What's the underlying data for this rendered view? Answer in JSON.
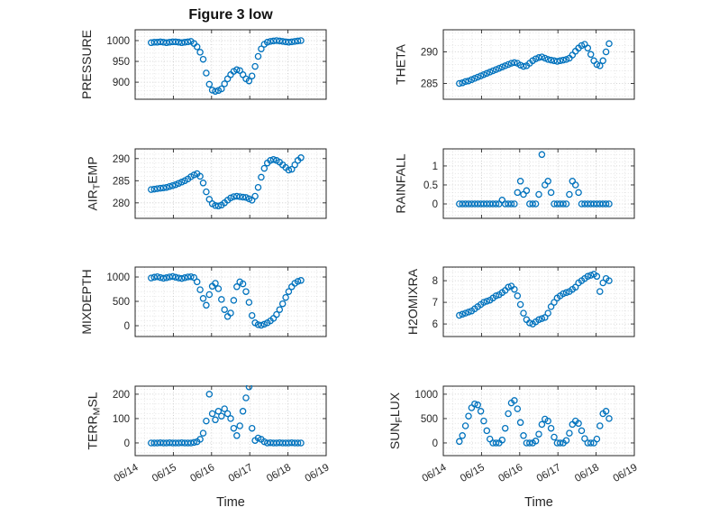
{
  "figure": {
    "title": "Figure 3 low",
    "xlabel": "Time"
  },
  "style": {
    "marker_color": "#0072BD",
    "marker": "open-circle",
    "axis_color": "#262626",
    "grid_color": "#c4c4c4",
    "minor_grid_color": "#dedede",
    "background": "#ffffff"
  },
  "chart_data": {
    "type": "scatter",
    "title": "Figure 3 low",
    "x_axis": {
      "xlabel": "Time",
      "xlim": [
        0,
        5
      ],
      "xticks": [
        0,
        1,
        2,
        3,
        4,
        5
      ],
      "xtick_labels": [
        "06/14",
        "06/15",
        "06/16",
        "06/17",
        "06/18",
        "06/19"
      ],
      "x_minor_step": 0.25
    },
    "x": [
      0.42,
      0.5,
      0.58,
      0.66,
      0.74,
      0.82,
      0.9,
      0.98,
      1.06,
      1.14,
      1.22,
      1.3,
      1.38,
      1.46,
      1.54,
      1.62,
      1.7,
      1.78,
      1.86,
      1.94,
      2.02,
      2.1,
      2.18,
      2.26,
      2.34,
      2.42,
      2.5,
      2.58,
      2.66,
      2.74,
      2.82,
      2.9,
      2.98,
      3.06,
      3.14,
      3.22,
      3.3,
      3.38,
      3.46,
      3.54,
      3.62,
      3.7,
      3.78,
      3.86,
      3.94,
      4.02,
      4.1,
      4.18,
      4.26,
      4.34
    ],
    "subplots": [
      {
        "id": "pressure",
        "row": 0,
        "col": 0,
        "ylabel": "PRESSURE",
        "ylabel_parts": [
          {
            "text": "PRESSURE"
          }
        ],
        "ylim": [
          859,
          1026
        ],
        "yticks": [
          900,
          950,
          1000
        ],
        "values": [
          995,
          996,
          996,
          997,
          996,
          995,
          996,
          997,
          997,
          996,
          995,
          996,
          997,
          998,
          993,
          985,
          972,
          955,
          922,
          895,
          881,
          878,
          880,
          884,
          896,
          908,
          918,
          926,
          930,
          928,
          918,
          908,
          903,
          915,
          938,
          962,
          980,
          991,
          996,
          998,
          999,
          1000,
          999,
          998,
          997,
          996,
          997,
          998,
          999,
          1000
        ]
      },
      {
        "id": "theta",
        "row": 0,
        "col": 1,
        "ylabel": "THETA",
        "ylabel_parts": [
          {
            "text": "THETA"
          }
        ],
        "ylim": [
          282.5,
          293.5
        ],
        "yticks": [
          285,
          290
        ],
        "values": [
          285.0,
          285.1,
          285.3,
          285.4,
          285.6,
          285.8,
          286.0,
          286.2,
          286.4,
          286.6,
          286.8,
          287.0,
          287.2,
          287.4,
          287.6,
          287.8,
          288.0,
          288.2,
          288.3,
          288.2,
          287.9,
          287.7,
          287.8,
          288.2,
          288.6,
          288.9,
          289.1,
          289.2,
          289.0,
          288.8,
          288.7,
          288.6,
          288.5,
          288.6,
          288.7,
          288.8,
          289.0,
          289.5,
          290.1,
          290.6,
          291.0,
          291.2,
          290.6,
          289.6,
          288.6,
          288.0,
          287.8,
          288.6,
          290.0,
          291.3
        ]
      },
      {
        "id": "air-temp",
        "row": 1,
        "col": 0,
        "ylabel": "AIR_TEMP",
        "ylabel_parts": [
          {
            "text": "AIR"
          },
          {
            "text": "T",
            "sub": true
          },
          {
            "text": "EMP"
          }
        ],
        "ylim": [
          276.5,
          292.2
        ],
        "yticks": [
          280,
          285,
          290
        ],
        "values": [
          283.0,
          283.1,
          283.2,
          283.3,
          283.4,
          283.5,
          283.7,
          283.9,
          284.1,
          284.4,
          284.7,
          285.0,
          285.4,
          285.9,
          286.3,
          286.6,
          286.0,
          284.5,
          282.5,
          280.8,
          279.8,
          279.4,
          279.3,
          279.5,
          280.0,
          280.6,
          281.1,
          281.4,
          281.5,
          281.4,
          281.3,
          281.2,
          280.9,
          280.6,
          281.5,
          283.5,
          285.8,
          287.8,
          289.0,
          289.6,
          289.8,
          289.6,
          289.2,
          288.6,
          288.0,
          287.4,
          287.6,
          288.6,
          289.6,
          290.2
        ]
      },
      {
        "id": "rainfall",
        "row": 1,
        "col": 1,
        "ylabel": "RAINFALL",
        "ylabel_parts": [
          {
            "text": "RAINFALL"
          }
        ],
        "ylim": [
          -0.38,
          1.45
        ],
        "yticks": [
          0,
          0.5,
          1
        ],
        "values": [
          0,
          0,
          0,
          0,
          0,
          0,
          0,
          0,
          0,
          0,
          0,
          0,
          0,
          0,
          0.1,
          0,
          0,
          0,
          0,
          0.3,
          0.6,
          0.25,
          0.35,
          0,
          0,
          0,
          0.25,
          1.3,
          0.5,
          0.6,
          0.3,
          0,
          0,
          0,
          0,
          0,
          0.25,
          0.6,
          0.5,
          0.3,
          0,
          0,
          0,
          0,
          0,
          0,
          0,
          0,
          0,
          0
        ]
      },
      {
        "id": "mixdepth",
        "row": 2,
        "col": 0,
        "ylabel": "MIXDEPTH",
        "ylabel_parts": [
          {
            "text": "MIXDEPTH"
          }
        ],
        "ylim": [
          -222,
          1204
        ],
        "yticks": [
          0,
          500,
          1000
        ],
        "values": [
          980,
          995,
          1005,
          990,
          975,
          985,
          1000,
          1010,
          995,
          980,
          970,
          985,
          1000,
          1005,
          990,
          900,
          740,
          560,
          420,
          640,
          810,
          870,
          760,
          540,
          330,
          190,
          260,
          520,
          800,
          900,
          860,
          700,
          480,
          210,
          60,
          20,
          10,
          30,
          60,
          100,
          150,
          230,
          330,
          450,
          580,
          700,
          800,
          870,
          910,
          930
        ]
      },
      {
        "id": "h2omixra",
        "row": 2,
        "col": 1,
        "ylabel": "H2OMIXRA",
        "ylabel_parts": [
          {
            "text": "H2OMIXRA"
          }
        ],
        "ylim": [
          5.42,
          8.63
        ],
        "yticks": [
          6,
          7,
          8
        ],
        "values": [
          6.4,
          6.45,
          6.5,
          6.55,
          6.6,
          6.7,
          6.8,
          6.9,
          7.0,
          7.05,
          7.1,
          7.2,
          7.3,
          7.35,
          7.45,
          7.55,
          7.7,
          7.75,
          7.6,
          7.3,
          6.9,
          6.5,
          6.2,
          6.05,
          6.0,
          6.1,
          6.2,
          6.25,
          6.3,
          6.5,
          6.8,
          7.0,
          7.2,
          7.3,
          7.4,
          7.45,
          7.5,
          7.6,
          7.7,
          7.9,
          8.0,
          8.1,
          8.2,
          8.25,
          8.3,
          8.2,
          7.5,
          7.9,
          8.1,
          8.0
        ]
      },
      {
        "id": "terr-msl",
        "row": 3,
        "col": 0,
        "ylabel": "TERR_MSL",
        "ylabel_parts": [
          {
            "text": "TERR"
          },
          {
            "text": "M",
            "sub": true
          },
          {
            "text": "SL"
          }
        ],
        "ylim": [
          -52,
          233
        ],
        "yticks": [
          0,
          100,
          200
        ],
        "values": [
          0,
          0,
          0,
          1,
          0,
          0,
          1,
          0,
          0,
          0,
          1,
          0,
          0,
          0,
          2,
          5,
          15,
          40,
          90,
          200,
          120,
          95,
          130,
          110,
          140,
          120,
          100,
          60,
          30,
          70,
          130,
          185,
          230,
          60,
          10,
          20,
          15,
          5,
          0,
          1,
          0,
          0,
          1,
          0,
          0,
          0,
          1,
          0,
          0,
          0
        ]
      },
      {
        "id": "sun-flux",
        "row": 3,
        "col": 1,
        "ylabel": "SUN_FLUX",
        "ylabel_parts": [
          {
            "text": "SUN"
          },
          {
            "text": "F",
            "sub": true
          },
          {
            "text": "LUX"
          }
        ],
        "ylim": [
          -260,
          1165
        ],
        "yticks": [
          0,
          500,
          1000
        ],
        "values": [
          30,
          150,
          350,
          550,
          720,
          800,
          780,
          650,
          450,
          250,
          80,
          0,
          0,
          0,
          60,
          300,
          600,
          820,
          870,
          700,
          420,
          150,
          0,
          0,
          0,
          40,
          180,
          380,
          490,
          450,
          300,
          120,
          0,
          0,
          0,
          50,
          200,
          380,
          450,
          400,
          250,
          90,
          0,
          0,
          0,
          80,
          350,
          600,
          650,
          500
        ]
      }
    ]
  }
}
